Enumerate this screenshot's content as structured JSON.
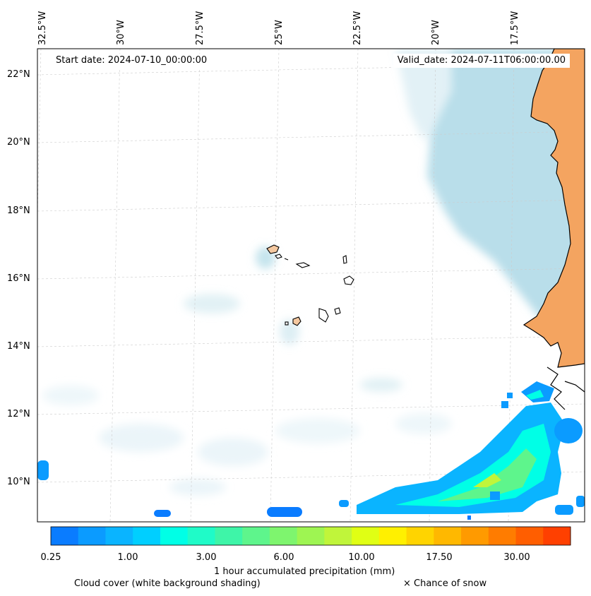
{
  "header": {
    "start_date": "Start date: 2024-07-10_00:00:00",
    "valid_date": "Valid_date: 2024-07-11T06:00:00.00"
  },
  "axes": {
    "lat_labels": [
      "22°N",
      "20°N",
      "18°N",
      "16°N",
      "14°N",
      "12°N",
      "10°N"
    ],
    "lon_labels": [
      "32.5°W",
      "30°W",
      "27.5°W",
      "25°W",
      "22.5°W",
      "20°W",
      "17.5°W"
    ]
  },
  "colorbar": {
    "ticks": [
      "0.25",
      "1.00",
      "3.00",
      "6.00",
      "10.00",
      "17.50",
      "30.00"
    ],
    "label": "1 hour accumulated precipitation (mm)",
    "colors": [
      "#0a7cff",
      "#0b9bff",
      "#0ab4ff",
      "#00cfff",
      "#00ffe6",
      "#1ffbc8",
      "#3ef5a8",
      "#5ef58c",
      "#7ef56e",
      "#9ef552",
      "#c0f53a",
      "#e0ff14",
      "#fff000",
      "#ffd400",
      "#ffb800",
      "#ff9a00",
      "#ff7c00",
      "#ff5e00",
      "#ff4000"
    ]
  },
  "legend": {
    "cloud_cover": "Cloud cover (white background shading)",
    "snow": "× Chance of snow"
  },
  "palette": {
    "land": "#f4a460",
    "coast": "#000000",
    "cloud": "#add8e6",
    "grid": "#cccccc"
  }
}
